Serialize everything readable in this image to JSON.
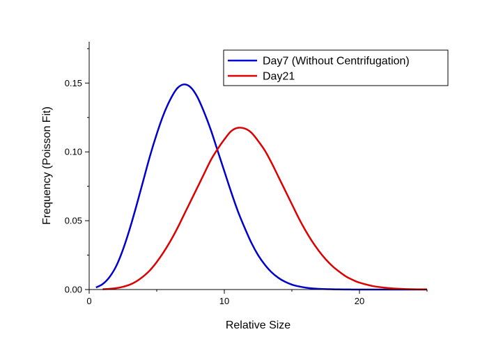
{
  "chart_data": {
    "type": "line",
    "xlabel": "Relative Size",
    "ylabel": "Frequency (Poisson Fit)",
    "xlim": [
      0,
      25
    ],
    "ylim": [
      0,
      0.18
    ],
    "x_ticks": [
      0,
      10,
      20
    ],
    "x_tick_labels": [
      "0",
      "10",
      "20"
    ],
    "y_ticks": [
      0,
      0.05,
      0.1,
      0.15
    ],
    "y_tick_labels": [
      "0.00",
      "0.05",
      "0.10",
      "0.15"
    ],
    "grid": false,
    "legend_position": "top-right",
    "series": [
      {
        "name": "Day7 (Without Centrifugation)",
        "color": "#0000CC",
        "x": [
          0.5,
          1,
          1.5,
          2,
          2.5,
          3,
          3.5,
          4,
          4.5,
          5,
          5.5,
          6,
          6.5,
          7,
          7.5,
          8,
          8.5,
          9,
          9.5,
          10,
          10.5,
          11,
          11.5,
          12,
          12.5,
          13,
          13.5,
          14,
          14.5,
          15,
          15.5,
          16,
          16.5,
          17,
          17.5,
          18,
          18.5,
          19,
          19.5,
          20,
          21,
          22,
          23,
          24,
          25
        ],
        "y": [
          0.0015,
          0.004,
          0.009,
          0.017,
          0.029,
          0.044,
          0.061,
          0.079,
          0.097,
          0.113,
          0.127,
          0.138,
          0.146,
          0.149,
          0.147,
          0.14,
          0.129,
          0.116,
          0.101,
          0.086,
          0.071,
          0.057,
          0.045,
          0.034,
          0.025,
          0.018,
          0.0125,
          0.0085,
          0.0056,
          0.0036,
          0.0023,
          0.0014,
          0.0008,
          0.0005,
          0.0003,
          0.0002,
          0.0001,
          5e-05,
          3e-05,
          2e-05,
          0.0,
          0.0,
          0.0,
          0.0,
          0.0
        ]
      },
      {
        "name": "Day21",
        "color": "#DD0000",
        "x": [
          1,
          1.5,
          2,
          2.5,
          3,
          3.5,
          4,
          4.5,
          5,
          5.5,
          6,
          6.5,
          7,
          7.5,
          8,
          8.5,
          9,
          9.5,
          10,
          10.5,
          11,
          11.5,
          12,
          12.5,
          13,
          13.5,
          14,
          14.5,
          15,
          15.5,
          16,
          16.5,
          17,
          17.5,
          18,
          18.5,
          19,
          19.5,
          20,
          21,
          22,
          23,
          24,
          25
        ],
        "y": [
          0.0002,
          0.0005,
          0.001,
          0.002,
          0.0035,
          0.006,
          0.0095,
          0.014,
          0.02,
          0.027,
          0.035,
          0.044,
          0.054,
          0.064,
          0.074,
          0.084,
          0.094,
          0.102,
          0.109,
          0.115,
          0.1175,
          0.117,
          0.114,
          0.108,
          0.101,
          0.092,
          0.082,
          0.072,
          0.062,
          0.052,
          0.043,
          0.035,
          0.028,
          0.022,
          0.017,
          0.013,
          0.0095,
          0.007,
          0.005,
          0.0025,
          0.0012,
          0.0005,
          0.0002,
          0.0001
        ]
      }
    ]
  }
}
